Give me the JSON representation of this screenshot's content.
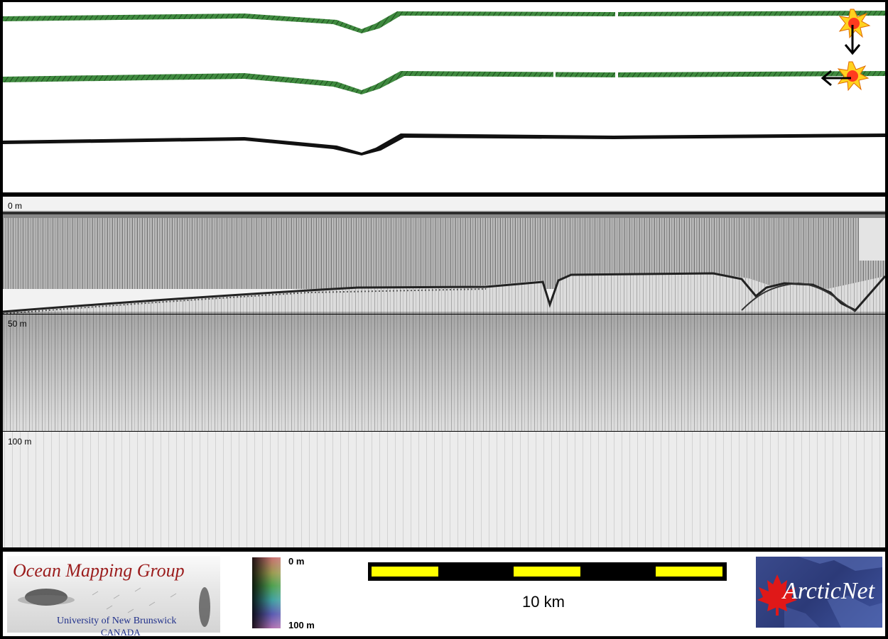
{
  "echogram": {
    "depth_labels": [
      "0 m",
      "50 m",
      "100 m"
    ]
  },
  "legend": {
    "org_title": "Ocean Mapping Group",
    "org_university": "University of New Brunswick",
    "org_country": "CANADA",
    "colorbar_min": "0 m",
    "colorbar_max": "100 m",
    "scale_label": "10 km",
    "partner_logo_text": "ArcticNet"
  },
  "colors": {
    "swath_green": "#3f8a3f",
    "scale_yellow": "#ffff00",
    "omg_red": "#9b1c1c",
    "omg_blue": "#1f2f8a",
    "arcticnet_blue": "#2c3a78"
  },
  "icons": [
    "sun-marker-icon",
    "arrow-down-icon",
    "arrow-left-icon",
    "maple-leaf-icon"
  ]
}
